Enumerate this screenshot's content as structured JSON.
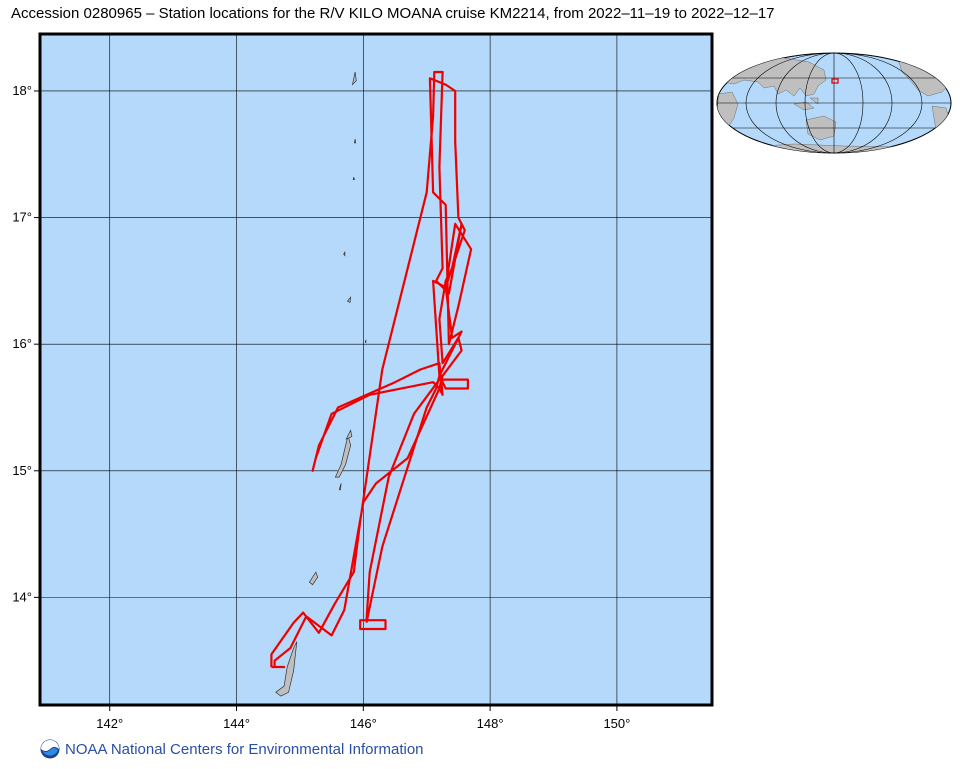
{
  "title": "Accession 0280965 – Station locations for the R/V KILO MOANA cruise KM2214, from 2022–11–19 to 2022–12–17",
  "footer": {
    "text": "NOAA National Centers for Environmental Information",
    "logo_icon": "noaa-logo-icon"
  },
  "map": {
    "lon_range": [
      140.9,
      151.5
    ],
    "lat_range": [
      13.15,
      18.45
    ],
    "x_ticks": [
      142,
      144,
      146,
      148,
      150
    ],
    "y_ticks": [
      14,
      15,
      16,
      17,
      18
    ],
    "x_tick_labels": [
      "142°",
      "144°",
      "146°",
      "148°",
      "150°"
    ],
    "y_tick_labels": [
      "14°",
      "15°",
      "16°",
      "17°",
      "18°"
    ],
    "ocean_color": "#b4d9fa",
    "land_color": "#bfbfbf",
    "track_color": "#ee0000",
    "grid": true
  },
  "track": [
    [
      144.55,
      13.45
    ],
    [
      144.55,
      13.55
    ],
    [
      144.9,
      13.8
    ],
    [
      145.05,
      13.88
    ],
    [
      145.3,
      13.72
    ],
    [
      145.55,
      13.95
    ],
    [
      145.85,
      14.2
    ],
    [
      145.95,
      14.6
    ],
    [
      146.3,
      15.8
    ],
    [
      146.7,
      16.6
    ],
    [
      147.0,
      17.2
    ],
    [
      147.1,
      17.8
    ],
    [
      147.12,
      18.15
    ],
    [
      147.25,
      18.15
    ],
    [
      147.2,
      17.4
    ],
    [
      147.25,
      16.6
    ],
    [
      147.15,
      16.5
    ],
    [
      147.35,
      16.4
    ],
    [
      147.55,
      16.95
    ],
    [
      147.4,
      16.6
    ],
    [
      147.3,
      16.5
    ],
    [
      147.2,
      16.2
    ],
    [
      147.25,
      15.85
    ],
    [
      147.5,
      16.05
    ],
    [
      147.55,
      15.95
    ],
    [
      147.25,
      15.75
    ],
    [
      147.2,
      15.65
    ],
    [
      147.25,
      15.6
    ],
    [
      147.2,
      15.85
    ],
    [
      146.9,
      15.8
    ],
    [
      146.5,
      15.7
    ],
    [
      145.6,
      15.5
    ],
    [
      145.3,
      15.2
    ],
    [
      145.2,
      15.0
    ],
    [
      145.25,
      15.1
    ],
    [
      145.5,
      15.45
    ],
    [
      146.1,
      15.6
    ],
    [
      147.1,
      15.7
    ],
    [
      147.2,
      15.65
    ],
    [
      146.7,
      15.1
    ],
    [
      146.2,
      14.9
    ],
    [
      146.0,
      14.75
    ],
    [
      145.7,
      13.9
    ],
    [
      145.5,
      13.7
    ],
    [
      145.1,
      13.85
    ],
    [
      144.85,
      13.6
    ],
    [
      144.6,
      13.5
    ],
    [
      144.6,
      13.45
    ],
    [
      144.75,
      13.45
    ],
    [
      144.55,
      13.45
    ]
  ],
  "track2": [
    [
      145.95,
      13.82
    ],
    [
      146.35,
      13.82
    ],
    [
      146.35,
      13.75
    ],
    [
      145.95,
      13.75
    ],
    [
      145.95,
      13.82
    ],
    [
      146.05,
      13.82
    ],
    [
      146.1,
      14.2
    ],
    [
      146.4,
      14.95
    ],
    [
      146.8,
      15.45
    ],
    [
      147.2,
      15.72
    ],
    [
      147.65,
      15.72
    ],
    [
      147.65,
      15.65
    ],
    [
      147.3,
      15.65
    ],
    [
      147.2,
      15.75
    ],
    [
      147.1,
      16.5
    ],
    [
      147.3,
      16.45
    ],
    [
      147.45,
      16.95
    ],
    [
      147.7,
      16.75
    ],
    [
      147.5,
      16.3
    ],
    [
      147.35,
      16.0
    ],
    [
      147.3,
      17.1
    ],
    [
      147.1,
      17.2
    ],
    [
      147.05,
      18.1
    ],
    [
      147.3,
      18.05
    ],
    [
      147.45,
      18.0
    ],
    [
      147.45,
      17.6
    ],
    [
      147.5,
      17.0
    ],
    [
      147.6,
      16.9
    ],
    [
      147.3,
      16.45
    ],
    [
      147.4,
      16.05
    ],
    [
      147.55,
      16.1
    ],
    [
      147.2,
      15.75
    ],
    [
      147.15,
      15.65
    ],
    [
      147.0,
      15.5
    ],
    [
      146.3,
      14.4
    ],
    [
      146.05,
      13.8
    ]
  ],
  "islands": [
    [
      [
        144.62,
        13.25
      ],
      [
        144.75,
        13.3
      ],
      [
        144.8,
        13.45
      ],
      [
        144.9,
        13.6
      ],
      [
        144.95,
        13.65
      ],
      [
        144.9,
        13.42
      ],
      [
        144.82,
        13.25
      ],
      [
        144.7,
        13.22
      ]
    ],
    [
      [
        145.15,
        14.12
      ],
      [
        145.25,
        14.2
      ],
      [
        145.28,
        14.16
      ],
      [
        145.2,
        14.1
      ]
    ],
    [
      [
        145.56,
        14.95
      ],
      [
        145.65,
        15.05
      ],
      [
        145.72,
        15.2
      ],
      [
        145.76,
        15.28
      ],
      [
        145.8,
        15.2
      ],
      [
        145.72,
        15.05
      ],
      [
        145.62,
        14.95
      ]
    ],
    [
      [
        145.62,
        14.85
      ],
      [
        145.65,
        14.9
      ],
      [
        145.64,
        14.85
      ]
    ],
    [
      [
        145.73,
        15.25
      ],
      [
        145.8,
        15.32
      ],
      [
        145.82,
        15.27
      ]
    ],
    [
      [
        145.75,
        16.34
      ],
      [
        145.8,
        16.37
      ],
      [
        145.79,
        16.33
      ]
    ],
    [
      [
        145.69,
        16.71
      ],
      [
        145.71,
        16.73
      ],
      [
        145.71,
        16.7
      ]
    ],
    [
      [
        145.84,
        17.3
      ],
      [
        145.85,
        17.32
      ],
      [
        145.86,
        17.3
      ]
    ],
    [
      [
        145.86,
        17.59
      ],
      [
        145.87,
        17.62
      ],
      [
        145.88,
        17.59
      ]
    ],
    [
      [
        145.83,
        18.05
      ],
      [
        145.87,
        18.15
      ],
      [
        145.89,
        18.08
      ]
    ],
    [
      [
        146.03,
        16.02
      ],
      [
        146.04,
        16.03
      ],
      [
        146.04,
        16.01
      ]
    ]
  ],
  "inset": {
    "ocean_color": "#b4d9fa",
    "land_color": "#bfbfbf",
    "box_color": "#ee0000"
  }
}
